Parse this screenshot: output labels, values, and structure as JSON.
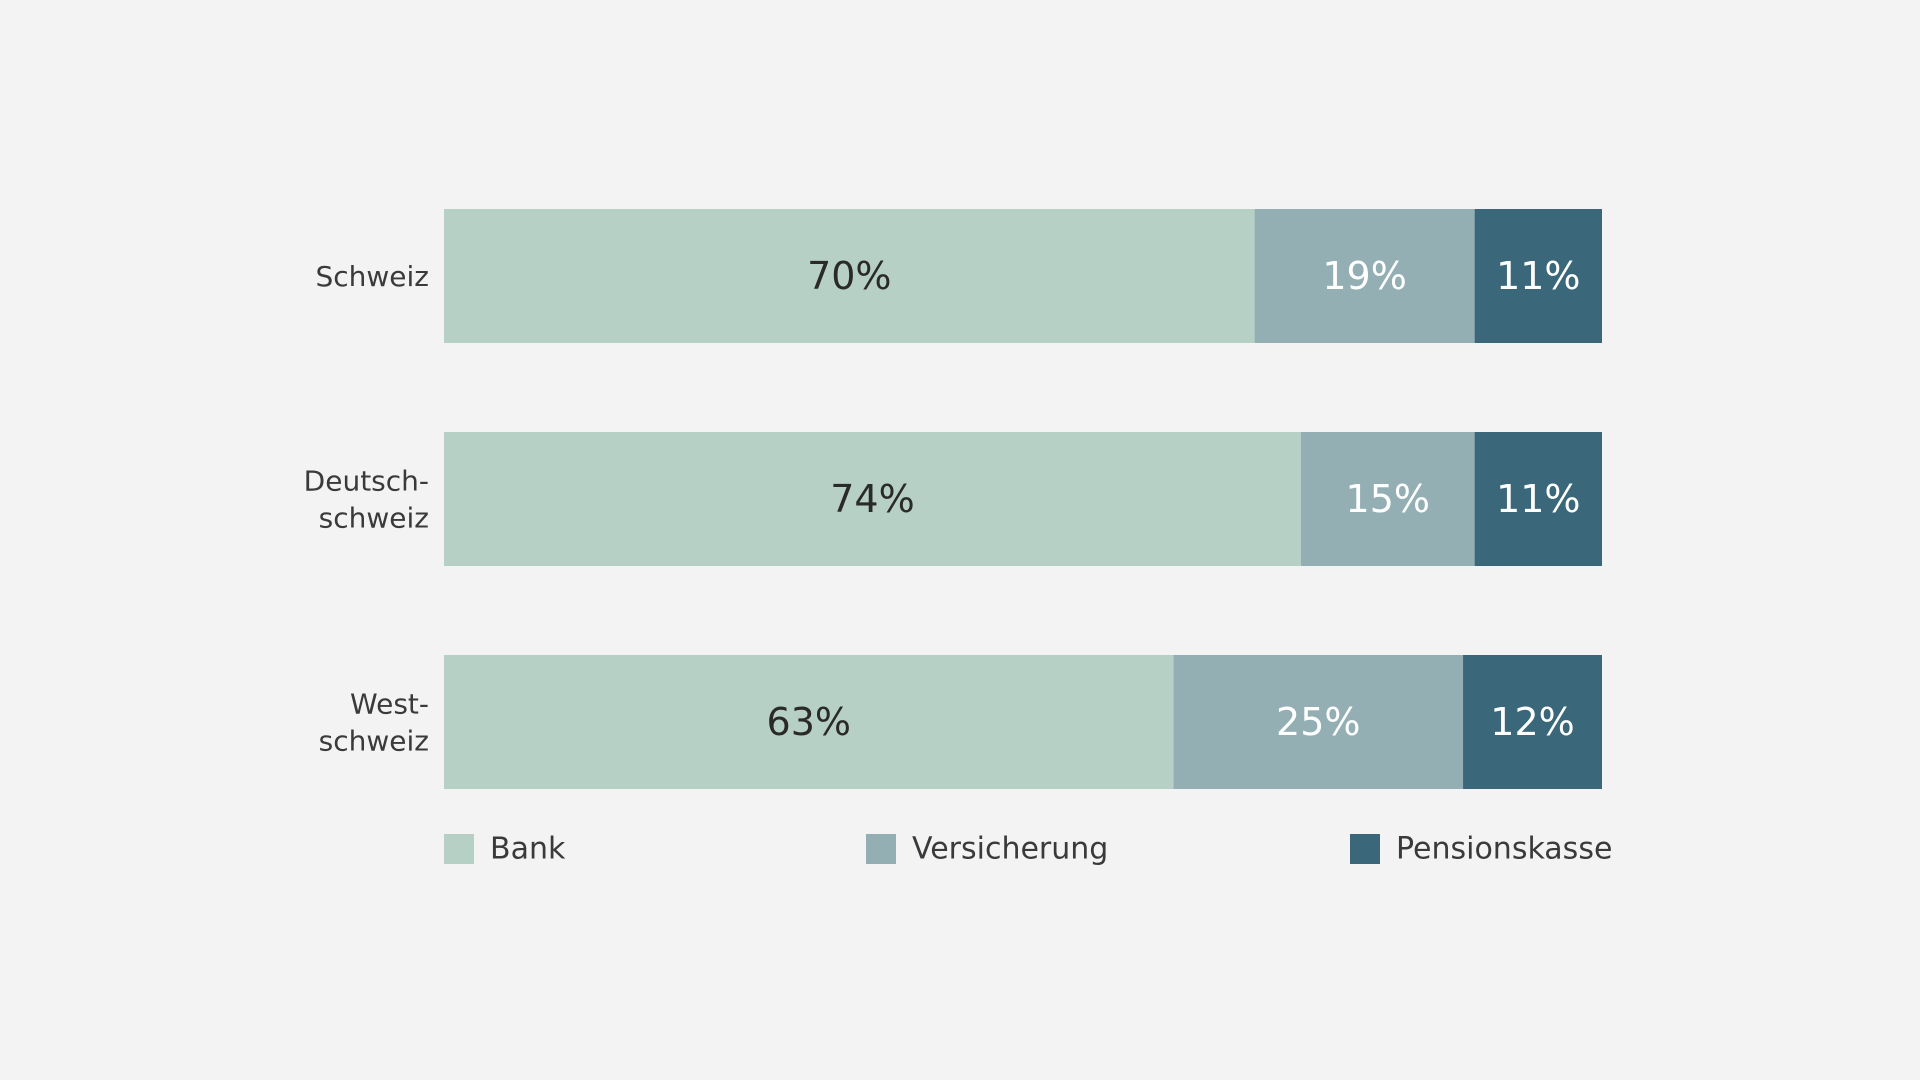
{
  "chart_data": {
    "type": "bar",
    "orientation": "horizontal",
    "stacked": true,
    "categories": [
      [
        "Schweiz"
      ],
      [
        "Deutsch-",
        "schweiz"
      ],
      [
        "West-",
        "schweiz"
      ]
    ],
    "series": [
      {
        "name": "Bank",
        "values": [
          70,
          74,
          63
        ],
        "labels": [
          "70%",
          "74%",
          "63%"
        ],
        "color": "#b7d0c5",
        "label_color": "#2a2a2a"
      },
      {
        "name": "Versicherung",
        "values": [
          19,
          15,
          25
        ],
        "labels": [
          "19%",
          "15%",
          "25%"
        ],
        "color": "#93afb4",
        "label_color": "#ffffff"
      },
      {
        "name": "Pensionskasse",
        "values": [
          11,
          11,
          12
        ],
        "labels": [
          "11%",
          "11%",
          "12%"
        ],
        "color": "#3a6779",
        "label_color": "#ffffff"
      }
    ],
    "xlim": [
      0,
      100
    ],
    "grid": false,
    "legend": "bottom"
  }
}
